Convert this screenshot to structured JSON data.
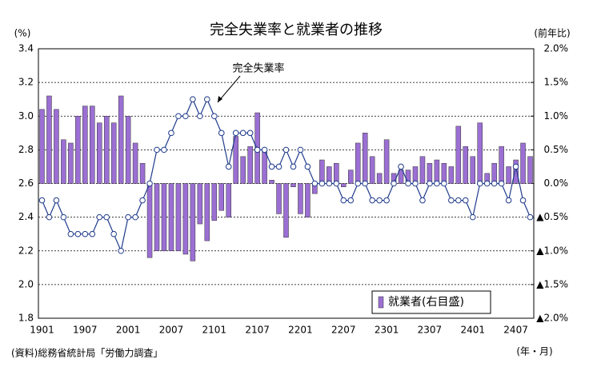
{
  "chart_data": {
    "type": "combo",
    "title": "完全失業率と就業者の推移",
    "y_unit": "(%)",
    "y2_unit": "(前年比)",
    "x_unit": "(年・月)",
    "source": "(資料)総務省統計局「労働力調査」",
    "categories": [
      "1901",
      null,
      null,
      null,
      null,
      null,
      "1907",
      null,
      null,
      null,
      null,
      null,
      "2001",
      null,
      null,
      null,
      null,
      null,
      "2007",
      null,
      null,
      null,
      null,
      null,
      "2101",
      null,
      null,
      null,
      null,
      null,
      "2107",
      null,
      null,
      null,
      null,
      null,
      "2201",
      null,
      null,
      null,
      null,
      null,
      "2207",
      null,
      null,
      null,
      null,
      null,
      "2301",
      null,
      null,
      null,
      null,
      null,
      "2307",
      null,
      null,
      null,
      null,
      null,
      "2401",
      null,
      null,
      null,
      null,
      null,
      "2407",
      null,
      null
    ],
    "series": [
      {
        "name": "完全失業率",
        "type": "line",
        "color": "#1f3b8c",
        "in_legend": false,
        "values": [
          2.5,
          2.4,
          2.5,
          2.4,
          2.3,
          2.3,
          2.3,
          2.3,
          2.4,
          2.4,
          2.3,
          2.2,
          2.4,
          2.4,
          2.5,
          2.6,
          2.8,
          2.8,
          2.9,
          3.0,
          3.0,
          3.1,
          3.0,
          3.1,
          3.0,
          2.9,
          2.7,
          2.9,
          2.9,
          2.9,
          2.8,
          2.8,
          2.7,
          2.7,
          2.8,
          2.7,
          2.8,
          2.7,
          2.6,
          2.6,
          2.6,
          2.6,
          2.5,
          2.5,
          2.6,
          2.6,
          2.5,
          2.5,
          2.5,
          2.6,
          2.7,
          2.6,
          2.6,
          2.5,
          2.6,
          2.6,
          2.6,
          2.5,
          2.5,
          2.5,
          2.4,
          2.6,
          2.6,
          2.6,
          2.6,
          2.5,
          2.7,
          2.5,
          2.4
        ]
      },
      {
        "name": "就業者(右目盛)",
        "type": "bar",
        "axis": "y2",
        "color": "#9b6fd3",
        "in_legend": true,
        "values": [
          1.1,
          1.3,
          1.1,
          0.65,
          0.6,
          1.0,
          1.15,
          1.15,
          0.9,
          1.0,
          0.9,
          1.3,
          1.0,
          0.6,
          0.3,
          -1.1,
          -1.0,
          -1.0,
          -1.0,
          -1.0,
          -1.05,
          -1.15,
          -0.6,
          -0.85,
          -0.55,
          -0.4,
          -0.5,
          0.7,
          0.4,
          0.55,
          1.05,
          0.5,
          0.05,
          -0.45,
          -0.8,
          -0.05,
          -0.45,
          -0.5,
          -0.15,
          0.35,
          0.25,
          0.3,
          -0.05,
          0.2,
          0.6,
          0.75,
          0.4,
          0.15,
          0.65,
          0.15,
          0.2,
          0.2,
          0.25,
          0.4,
          0.3,
          0.35,
          0.3,
          0.25,
          0.85,
          0.55,
          0.4,
          0.9,
          0.15,
          0.3,
          0.55,
          0.25,
          0.35,
          0.6,
          0.4
        ]
      }
    ],
    "ylim": [
      1.8,
      3.4
    ],
    "yticks": [
      1.8,
      {
        "value": 2.0,
        "label": "2.0"
      },
      2.2,
      2.4,
      2.6,
      2.8,
      {
        "value": 3.0,
        "label": "3.0"
      },
      3.2,
      3.4
    ],
    "y2lim": [
      -2.0,
      2.0
    ],
    "y2ticks": [
      {
        "value": 2.0,
        "label": "2.0%"
      },
      {
        "value": 1.5,
        "label": "1.5%"
      },
      {
        "value": 1.0,
        "label": "1.0%"
      },
      {
        "value": 0.5,
        "label": "0.5%"
      },
      {
        "value": 0,
        "label": "0.0%"
      },
      {
        "value": -0.5,
        "label": "▲0.5%"
      },
      {
        "value": -1.0,
        "label": "▲1.0%"
      },
      {
        "value": -1.5,
        "label": "▲1.5%"
      },
      {
        "value": -2.0,
        "label": "▲2.0%"
      }
    ],
    "grid": true,
    "legend": "lower right"
  }
}
